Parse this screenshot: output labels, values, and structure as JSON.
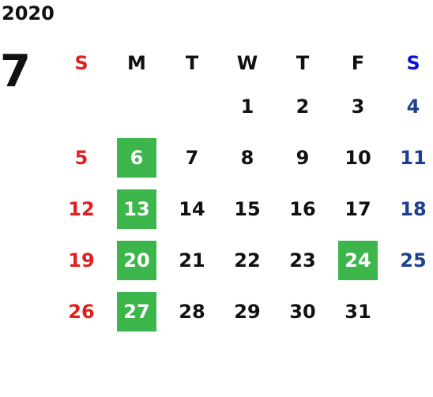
{
  "year": "2020",
  "month": "7",
  "colors": {
    "text": "#111111",
    "sunday": "#e02020",
    "saturday_header": "#1010dd",
    "saturday": "#1f3f8f",
    "highlight_bg": "#3cb54a",
    "highlight_text": "#ffffff"
  },
  "weekday_headers": [
    "S",
    "M",
    "T",
    "W",
    "T",
    "F",
    "S"
  ],
  "weeks": [
    [
      {
        "d": "",
        "hl": false
      },
      {
        "d": "",
        "hl": false
      },
      {
        "d": "",
        "hl": false
      },
      {
        "d": "1",
        "hl": false
      },
      {
        "d": "2",
        "hl": false
      },
      {
        "d": "3",
        "hl": false
      },
      {
        "d": "4",
        "hl": false
      }
    ],
    [
      {
        "d": "5",
        "hl": false
      },
      {
        "d": "6",
        "hl": true
      },
      {
        "d": "7",
        "hl": false
      },
      {
        "d": "8",
        "hl": false
      },
      {
        "d": "9",
        "hl": false
      },
      {
        "d": "10",
        "hl": false
      },
      {
        "d": "11",
        "hl": false
      }
    ],
    [
      {
        "d": "12",
        "hl": false
      },
      {
        "d": "13",
        "hl": true
      },
      {
        "d": "14",
        "hl": false
      },
      {
        "d": "15",
        "hl": false
      },
      {
        "d": "16",
        "hl": false
      },
      {
        "d": "17",
        "hl": false
      },
      {
        "d": "18",
        "hl": false
      }
    ],
    [
      {
        "d": "19",
        "hl": false
      },
      {
        "d": "20",
        "hl": true
      },
      {
        "d": "21",
        "hl": false
      },
      {
        "d": "22",
        "hl": false
      },
      {
        "d": "23",
        "hl": false
      },
      {
        "d": "24",
        "hl": true
      },
      {
        "d": "25",
        "hl": false
      }
    ],
    [
      {
        "d": "26",
        "hl": false
      },
      {
        "d": "27",
        "hl": true
      },
      {
        "d": "28",
        "hl": false
      },
      {
        "d": "29",
        "hl": false
      },
      {
        "d": "30",
        "hl": false
      },
      {
        "d": "31",
        "hl": false
      },
      {
        "d": "",
        "hl": false
      }
    ]
  ]
}
